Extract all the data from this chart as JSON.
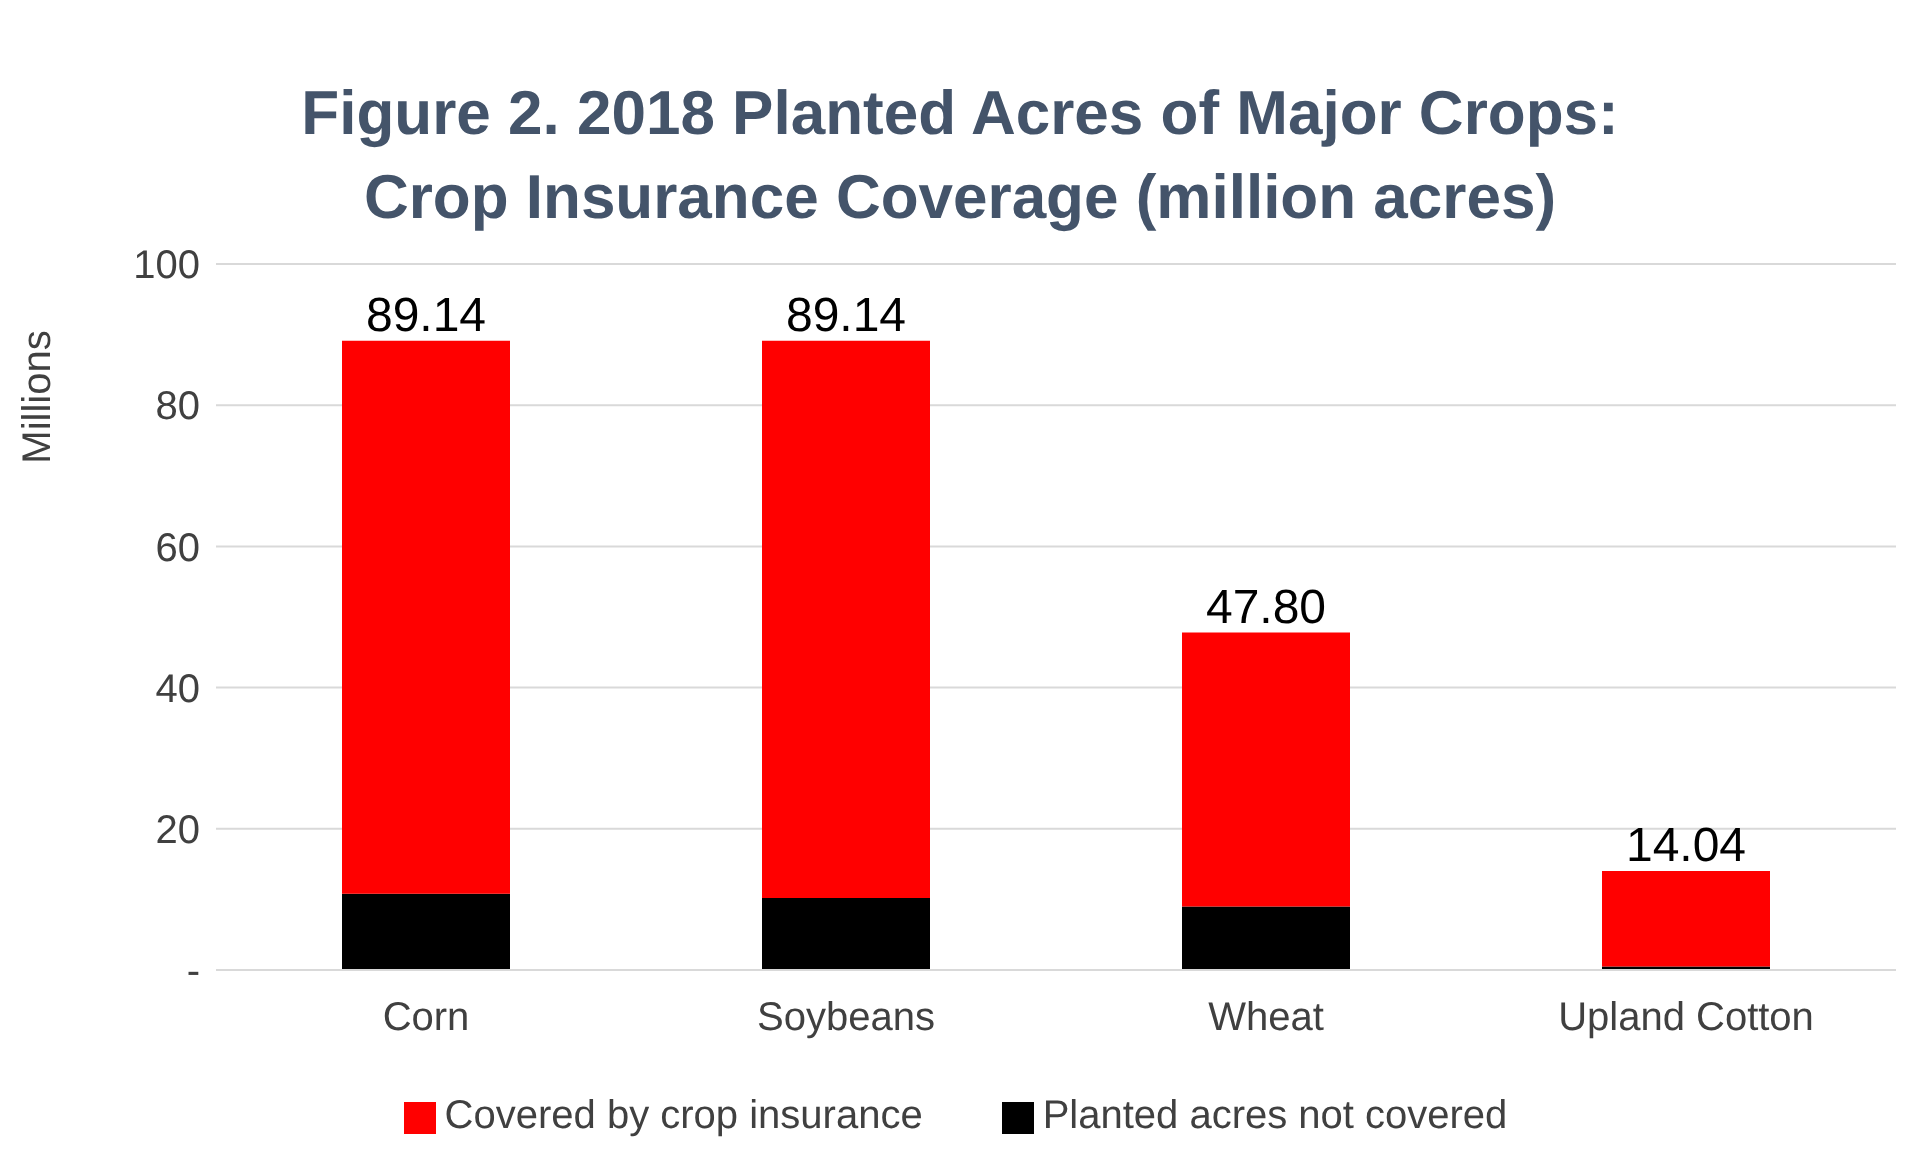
{
  "chart_data": {
    "type": "bar",
    "title": "Figure 2. 2018 Planted Acres of Major Crops:\nCrop Insurance Coverage (million acres)",
    "ylabel": "Millions",
    "categories": [
      "Corn",
      "Soybeans",
      "Wheat",
      "Upland Cotton"
    ],
    "series": [
      {
        "name": "Planted acres not covered",
        "color": "#000000",
        "values": [
          10.8,
          10.2,
          9.0,
          0.5
        ]
      },
      {
        "name": "Covered by crop insurance",
        "color": "#ff0000",
        "values": [
          78.34,
          78.94,
          38.8,
          13.54
        ]
      }
    ],
    "stacked": true,
    "totals": [
      "89.14",
      "89.14",
      "47.80",
      "14.04"
    ],
    "ylim": [
      0,
      100
    ],
    "yticks": [
      {
        "value": 0,
        "label": "-"
      },
      20,
      40,
      60,
      80,
      100
    ],
    "grid": "y",
    "legend": "bottom"
  }
}
